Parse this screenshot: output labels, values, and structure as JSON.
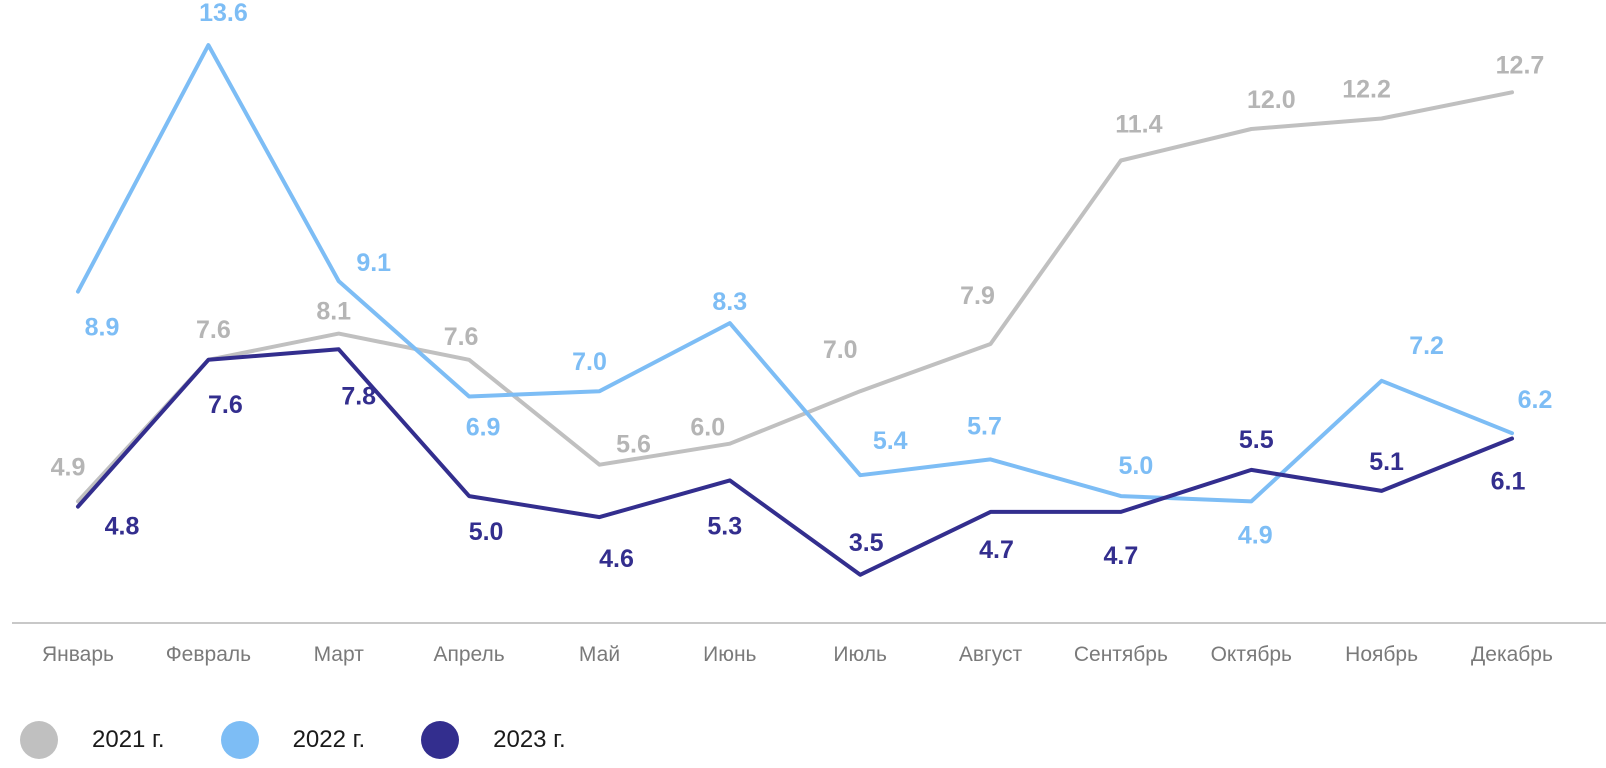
{
  "chart_data": {
    "type": "line",
    "categories": [
      "Январь",
      "Февраль",
      "Март",
      "Апрель",
      "Май",
      "Июнь",
      "Июль",
      "Август",
      "Сентябрь",
      "Октябрь",
      "Ноябрь",
      "Декабрь"
    ],
    "series": [
      {
        "name": "2021 г.",
        "color": "#c0c0c0",
        "values": [
          4.9,
          7.6,
          8.1,
          7.6,
          5.6,
          6.0,
          7.0,
          7.9,
          11.4,
          12.0,
          12.2,
          12.7
        ]
      },
      {
        "name": "2022 г.",
        "color": "#7dbdf5",
        "values": [
          8.9,
          13.6,
          9.1,
          6.9,
          7.0,
          8.3,
          5.4,
          5.7,
          5.0,
          4.9,
          7.2,
          6.2
        ]
      },
      {
        "name": "2023 г.",
        "color": "#332e8e",
        "values": [
          4.8,
          7.6,
          7.8,
          5.0,
          4.6,
          5.3,
          3.5,
          4.7,
          4.7,
          5.5,
          5.1,
          6.1
        ]
      }
    ],
    "grid": false,
    "legend": "bottom-left"
  }
}
